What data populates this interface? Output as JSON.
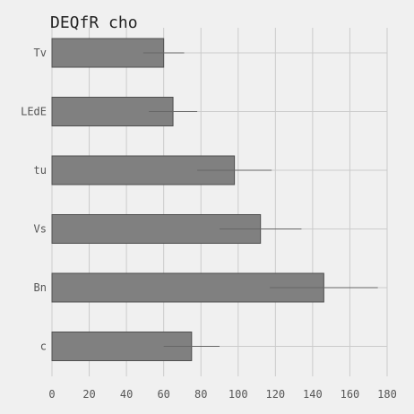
{
  "chart_data": {
    "type": "bar",
    "orientation": "horizontal",
    "title": "DEQfR cho",
    "xlabel": "",
    "ylabel": "",
    "categories": [
      "Tv",
      "LEdE",
      "tu",
      "Vs",
      "Bn",
      "c"
    ],
    "values": [
      60,
      65,
      98,
      112,
      146,
      75
    ],
    "errors": [
      11,
      13,
      20,
      22,
      29,
      15
    ],
    "xlim": [
      0,
      180
    ],
    "xticks": [
      "0",
      "20",
      "40",
      "60",
      "80",
      "100",
      "120",
      "140",
      "160",
      "180"
    ],
    "grid": true,
    "colors": {
      "background": "#f0f0f0",
      "bar": "#808080",
      "bar_edge": "#4f4f4f",
      "grid": "#cbcbcb",
      "error": "#666666"
    }
  }
}
